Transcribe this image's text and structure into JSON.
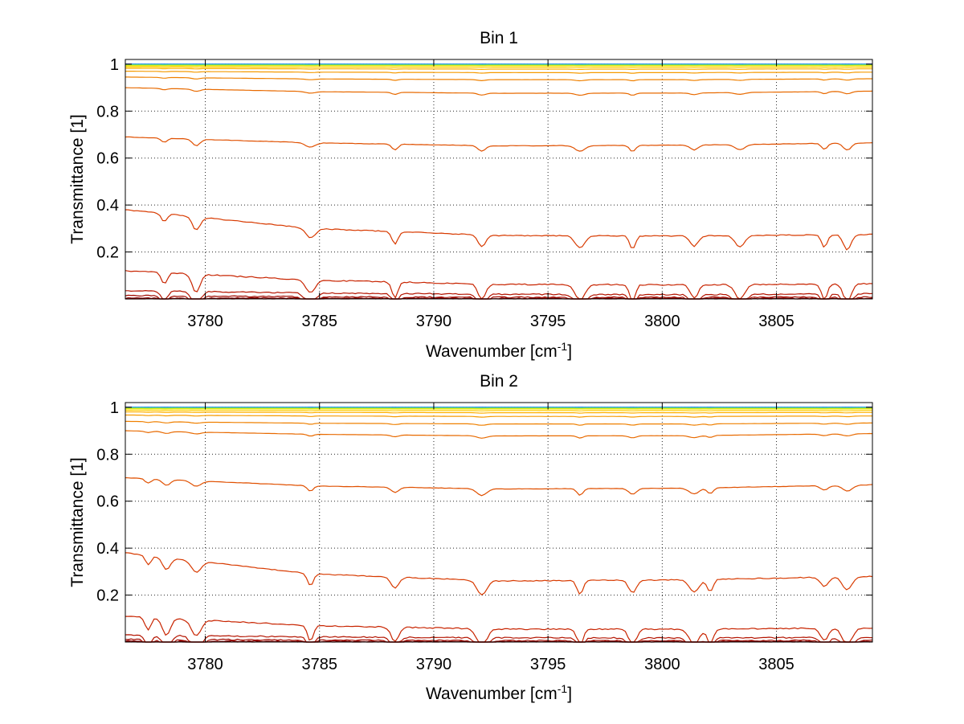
{
  "chart_data": [
    {
      "type": "line",
      "title": "Bin 1",
      "xlabel": "Wavenumber [cm",
      "xlabel_sup": "-1",
      "xlabel_end": "]",
      "ylabel": "Transmittance [1]",
      "xlim": [
        3776.5,
        3809.2
      ],
      "ylim": [
        0,
        1.02
      ],
      "xticks": [
        3780,
        3785,
        3790,
        3795,
        3800,
        3805
      ],
      "yticks": [
        0.2,
        0.4,
        0.6,
        0.8,
        1
      ],
      "xtick_labels": [
        "3780",
        "3785",
        "3790",
        "3795",
        "3800",
        "3805"
      ],
      "ytick_labels": [
        "0.2",
        "0.4",
        "0.6",
        "0.8",
        "1"
      ],
      "grid": true,
      "dips": [
        3778.2,
        3779.6,
        3784.6,
        3788.3,
        3792.1,
        3796.4,
        3798.7,
        3801.4,
        3803.4,
        3807.1,
        3808.1
      ],
      "series": [
        {
          "color": "#0000c8",
          "values": [
            1.0,
            1.0,
            1.0,
            1.0,
            1.0
          ]
        },
        {
          "color": "#0047ff",
          "values": [
            1.0,
            1.0,
            1.0,
            1.0,
            1.0
          ]
        },
        {
          "color": "#00b4ff",
          "values": [
            0.999,
            0.999,
            0.999,
            0.999,
            0.999
          ]
        },
        {
          "color": "#30e0c0",
          "values": [
            0.998,
            0.998,
            0.998,
            0.998,
            0.998
          ]
        },
        {
          "color": "#a0e040",
          "values": [
            0.996,
            0.996,
            0.996,
            0.996,
            0.996
          ]
        },
        {
          "color": "#f0e800",
          "values": [
            0.993,
            0.993,
            0.993,
            0.993,
            0.993
          ]
        },
        {
          "color": "#ffcc00",
          "values": [
            0.988,
            0.987,
            0.987,
            0.987,
            0.987
          ]
        },
        {
          "color": "#ffb000",
          "values": [
            0.982,
            0.98,
            0.979,
            0.979,
            0.98
          ]
        },
        {
          "color": "#f59a00",
          "values": [
            0.97,
            0.966,
            0.964,
            0.964,
            0.966
          ]
        },
        {
          "color": "#ef8000",
          "values": [
            0.945,
            0.937,
            0.934,
            0.934,
            0.938
          ]
        },
        {
          "color": "#e86a00",
          "values": [
            0.9,
            0.883,
            0.876,
            0.877,
            0.885
          ]
        },
        {
          "color": "#e05000",
          "values": [
            0.69,
            0.665,
            0.652,
            0.655,
            0.665
          ]
        },
        {
          "color": "#d83a00",
          "values": [
            0.38,
            0.3,
            0.27,
            0.268,
            0.275
          ]
        },
        {
          "color": "#c82400",
          "values": [
            0.12,
            0.08,
            0.062,
            0.06,
            0.065
          ]
        },
        {
          "color": "#b41400",
          "values": [
            0.035,
            0.025,
            0.02,
            0.018,
            0.022
          ]
        },
        {
          "color": "#a00a00",
          "values": [
            0.014,
            0.009,
            0.007,
            0.007,
            0.008
          ]
        },
        {
          "color": "#900000",
          "values": [
            0.004,
            0.003,
            0.002,
            0.002,
            0.002
          ]
        },
        {
          "color": "#800000",
          "values": [
            0.001,
            0.001,
            0.001,
            0.001,
            0.001
          ]
        }
      ]
    },
    {
      "type": "line",
      "title": "Bin 2",
      "xlabel": "Wavenumber [cm",
      "xlabel_sup": "-1",
      "xlabel_end": "]",
      "ylabel": "Transmittance [1]",
      "xlim": [
        3776.5,
        3809.2
      ],
      "ylim": [
        0,
        1.02
      ],
      "xticks": [
        3780,
        3785,
        3790,
        3795,
        3800,
        3805
      ],
      "yticks": [
        0.2,
        0.4,
        0.6,
        0.8,
        1
      ],
      "xtick_labels": [
        "3780",
        "3785",
        "3790",
        "3795",
        "3800",
        "3805"
      ],
      "ytick_labels": [
        "0.2",
        "0.4",
        "0.6",
        "0.8",
        "1"
      ],
      "grid": true,
      "dips": [
        3777.5,
        3778.3,
        3779.6,
        3784.6,
        3788.3,
        3792.1,
        3796.4,
        3798.7,
        3801.4,
        3802.1,
        3807.1,
        3808.1
      ],
      "series": [
        {
          "color": "#0000c8",
          "values": [
            1.0,
            1.0,
            1.0,
            1.0,
            1.0
          ]
        },
        {
          "color": "#0047ff",
          "values": [
            1.0,
            1.0,
            1.0,
            1.0,
            1.0
          ]
        },
        {
          "color": "#00b4ff",
          "values": [
            0.999,
            0.999,
            0.999,
            0.999,
            0.999
          ]
        },
        {
          "color": "#30e0c0",
          "values": [
            0.998,
            0.998,
            0.998,
            0.998,
            0.998
          ]
        },
        {
          "color": "#a0e040",
          "values": [
            0.996,
            0.996,
            0.996,
            0.996,
            0.996
          ]
        },
        {
          "color": "#f0e800",
          "values": [
            0.993,
            0.993,
            0.993,
            0.993,
            0.993
          ]
        },
        {
          "color": "#ffcc00",
          "values": [
            0.987,
            0.986,
            0.986,
            0.986,
            0.986
          ]
        },
        {
          "color": "#ffb000",
          "values": [
            0.98,
            0.978,
            0.977,
            0.977,
            0.978
          ]
        },
        {
          "color": "#f59a00",
          "values": [
            0.967,
            0.963,
            0.961,
            0.961,
            0.963
          ]
        },
        {
          "color": "#ef8000",
          "values": [
            0.94,
            0.932,
            0.929,
            0.929,
            0.933
          ]
        },
        {
          "color": "#e86a00",
          "values": [
            0.9,
            0.885,
            0.878,
            0.879,
            0.888
          ]
        },
        {
          "color": "#e05000",
          "values": [
            0.7,
            0.665,
            0.652,
            0.655,
            0.67
          ]
        },
        {
          "color": "#d83a00",
          "values": [
            0.38,
            0.29,
            0.26,
            0.265,
            0.28
          ]
        },
        {
          "color": "#c82400",
          "values": [
            0.11,
            0.07,
            0.055,
            0.055,
            0.06
          ]
        },
        {
          "color": "#b41400",
          "values": [
            0.03,
            0.022,
            0.018,
            0.017,
            0.02
          ]
        },
        {
          "color": "#a00a00",
          "values": [
            0.012,
            0.008,
            0.006,
            0.006,
            0.007
          ]
        },
        {
          "color": "#900000",
          "values": [
            0.004,
            0.003,
            0.002,
            0.002,
            0.002
          ]
        },
        {
          "color": "#800000",
          "values": [
            0.001,
            0.001,
            0.001,
            0.001,
            0.001
          ]
        }
      ]
    }
  ]
}
